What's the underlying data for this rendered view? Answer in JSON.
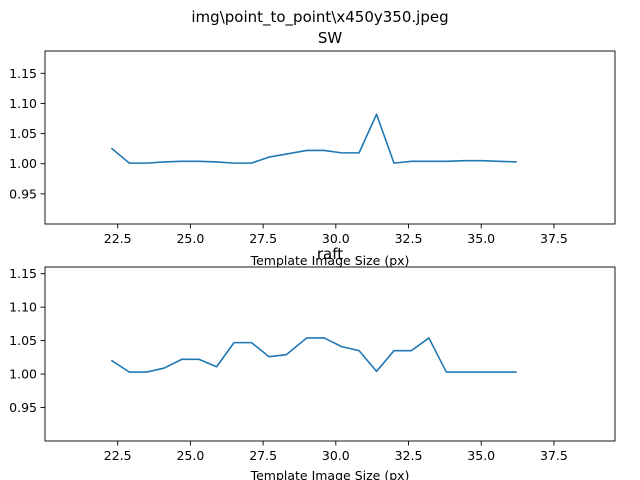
{
  "figure": {
    "suptitle": "img\\point_to_point\\x450y350.jpeg"
  },
  "chart_data": [
    {
      "type": "line",
      "title": "SW",
      "xlabel": "Template Image Size (px)",
      "ylabel": "",
      "xlim": [
        20.0,
        39.6
      ],
      "ylim": [
        0.9,
        1.187
      ],
      "xticks": [
        "22.5",
        "25.0",
        "27.5",
        "30.0",
        "32.5",
        "35.0",
        "37.5"
      ],
      "xtick_values": [
        22.5,
        25.0,
        27.5,
        30.0,
        32.5,
        35.0,
        37.5
      ],
      "yticks": [
        "0.95",
        "1.00",
        "1.05",
        "1.10",
        "1.15"
      ],
      "ytick_values": [
        0.95,
        1.0,
        1.05,
        1.1,
        1.15
      ],
      "grid": false,
      "color": "#1f77b4",
      "series": [
        {
          "x": [
            22.3,
            22.9,
            23.5,
            24.1,
            24.7,
            25.3,
            25.9,
            26.5,
            27.1,
            27.7,
            28.3,
            29.0,
            29.6,
            30.2,
            30.8,
            31.4,
            32.0,
            32.6,
            33.2,
            33.8,
            34.4,
            35.0,
            35.6,
            36.2
          ],
          "values": [
            1.025,
            1.001,
            1.001,
            1.003,
            1.004,
            1.004,
            1.003,
            1.001,
            1.001,
            1.011,
            1.016,
            1.022,
            1.022,
            1.018,
            1.018,
            1.082,
            1.001,
            1.004,
            1.004,
            1.004,
            1.005,
            1.005,
            1.004,
            1.003
          ]
        }
      ]
    },
    {
      "type": "line",
      "title": "raft",
      "xlabel": "Template Image Size (px)",
      "ylabel": "",
      "xlim": [
        20.0,
        39.6
      ],
      "ylim": [
        0.9,
        1.16
      ],
      "xticks": [
        "22.5",
        "25.0",
        "27.5",
        "30.0",
        "32.5",
        "35.0",
        "37.5"
      ],
      "xtick_values": [
        22.5,
        25.0,
        27.5,
        30.0,
        32.5,
        35.0,
        37.5
      ],
      "yticks": [
        "0.95",
        "1.00",
        "1.05",
        "1.10",
        "1.15"
      ],
      "ytick_values": [
        0.95,
        1.0,
        1.05,
        1.1,
        1.15
      ],
      "grid": false,
      "color": "#1f77b4",
      "series": [
        {
          "x": [
            22.3,
            22.9,
            23.5,
            24.1,
            24.7,
            25.3,
            25.9,
            26.5,
            27.1,
            27.7,
            28.3,
            29.0,
            29.6,
            30.2,
            30.8,
            31.4,
            32.0,
            32.6,
            33.2,
            33.8,
            34.4,
            35.0,
            35.6,
            36.2
          ],
          "values": [
            1.02,
            1.003,
            1.003,
            1.009,
            1.022,
            1.022,
            1.011,
            1.047,
            1.047,
            1.026,
            1.029,
            1.054,
            1.054,
            1.041,
            1.035,
            1.004,
            1.035,
            1.035,
            1.054,
            1.003,
            1.003,
            1.003,
            1.003,
            1.003
          ]
        }
      ]
    }
  ]
}
